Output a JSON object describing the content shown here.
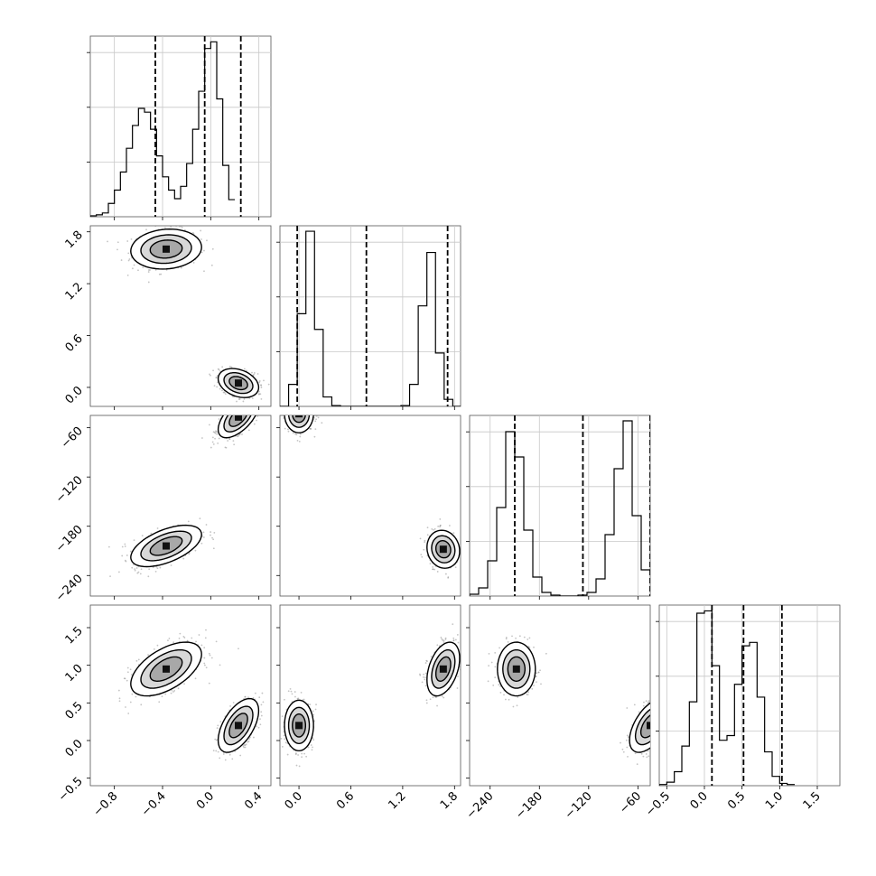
{
  "chart_data": [
    {
      "type": "histogram",
      "param_index": 0,
      "bins": {
        "start": -1.0,
        "width": 0.05,
        "heights": [
          1,
          2,
          4,
          14,
          28,
          47,
          72,
          96,
          114,
          110,
          92,
          64,
          42,
          28,
          19,
          32,
          56,
          92,
          132,
          177,
          184,
          124,
          54,
          18
        ]
      },
      "quantile_lines": [
        -0.46,
        -0.05,
        0.25
      ],
      "grid": true,
      "ylim": [
        0,
        190
      ]
    },
    {
      "type": "histogram",
      "param_index": 1,
      "bins": {
        "start": -0.22,
        "width": 0.1,
        "heights": [
          0,
          28,
          118,
          223,
          98,
          12,
          1,
          0,
          0,
          0,
          0,
          0,
          0,
          0,
          1,
          28,
          128,
          196,
          68,
          9,
          0
        ]
      },
      "quantile_lines": [
        -0.02,
        0.78,
        1.72
      ],
      "grid": true,
      "ylim": [
        0,
        230
      ]
    },
    {
      "type": "histogram",
      "param_index": 2,
      "bins": {
        "start": -265,
        "width": 11,
        "heights": [
          2,
          9,
          39,
          98,
          182,
          154,
          73,
          21,
          4,
          1,
          0,
          0,
          1,
          4,
          19,
          68,
          141,
          194,
          89,
          29
        ]
      },
      "quantile_lines": [
        -210,
        -127,
        -45
      ],
      "grid": true,
      "ylim": [
        0,
        200
      ]
    },
    {
      "type": "histogram",
      "param_index": 3,
      "bins": {
        "start": -0.6,
        "width": 0.1,
        "heights": [
          1,
          3,
          12,
          34,
          72,
          148,
          150,
          103,
          39,
          43,
          87,
          120,
          123,
          76,
          29,
          8,
          2,
          1
        ]
      },
      "quantile_lines": [
        0.1,
        0.52,
        1.03
      ],
      "grid": true,
      "ylim": [
        0,
        155
      ]
    },
    {
      "type": "scatter",
      "x_param": 0,
      "y_param": 1,
      "clusters": [
        {
          "mean_x": -0.37,
          "mean_y": 1.6,
          "sd_x": 0.14,
          "sd_y": 0.11,
          "rho": 0.1
        },
        {
          "mean_x": 0.23,
          "mean_y": 0.05,
          "sd_x": 0.08,
          "sd_y": 0.08,
          "rho": -0.3
        }
      ],
      "contour_levels": [
        1.0,
        1.5,
        2.0
      ]
    },
    {
      "type": "scatter",
      "x_param": 0,
      "y_param": 2,
      "clusters": [
        {
          "mean_x": 0.23,
          "mean_y": -47,
          "sd_x": 0.08,
          "sd_y": 12,
          "rho": 0.6
        },
        {
          "mean_x": -0.37,
          "mean_y": -204,
          "sd_x": 0.14,
          "sd_y": 12,
          "rho": 0.55
        }
      ],
      "contour_levels": [
        1.0,
        1.5,
        2.0
      ]
    },
    {
      "type": "scatter",
      "x_param": 1,
      "y_param": 2,
      "clusters": [
        {
          "mean_x": 0.0,
          "mean_y": -43,
          "sd_x": 0.08,
          "sd_y": 11,
          "rho": 0.0
        },
        {
          "mean_x": 1.67,
          "mean_y": -208,
          "sd_x": 0.09,
          "sd_y": 11,
          "rho": -0.1
        }
      ],
      "contour_levels": [
        1.0,
        1.5,
        2.0
      ]
    },
    {
      "type": "scatter",
      "x_param": 0,
      "y_param": 3,
      "clusters": [
        {
          "mean_x": -0.37,
          "mean_y": 0.95,
          "sd_x": 0.14,
          "sd_y": 0.17,
          "rho": 0.55
        },
        {
          "mean_x": 0.23,
          "mean_y": 0.2,
          "sd_x": 0.08,
          "sd_y": 0.17,
          "rho": 0.55
        }
      ],
      "contour_levels": [
        1.0,
        1.5,
        2.0
      ]
    },
    {
      "type": "scatter",
      "x_param": 1,
      "y_param": 3,
      "clusters": [
        {
          "mean_x": 0.0,
          "mean_y": 0.2,
          "sd_x": 0.08,
          "sd_y": 0.16,
          "rho": 0.0
        },
        {
          "mean_x": 1.67,
          "mean_y": 0.95,
          "sd_x": 0.09,
          "sd_y": 0.17,
          "rho": 0.4
        }
      ],
      "contour_levels": [
        1.0,
        1.5,
        2.0
      ]
    },
    {
      "type": "scatter",
      "x_param": 2,
      "y_param": 3,
      "clusters": [
        {
          "mean_x": -208,
          "mean_y": 0.95,
          "sd_x": 11,
          "sd_y": 0.17,
          "rho": 0.0
        },
        {
          "mean_x": -45,
          "mean_y": 0.2,
          "sd_x": 12,
          "sd_y": 0.17,
          "rho": 0.55
        }
      ],
      "contour_levels": [
        1.0,
        1.5,
        2.0
      ]
    }
  ],
  "params": [
    {
      "range": [
        -1.0,
        0.5
      ],
      "ticks": [
        -0.8,
        -0.4,
        0.0,
        0.4
      ],
      "tick_labels": [
        "−0.8",
        "−0.4",
        "0.0",
        "0.4"
      ]
    },
    {
      "range": [
        -0.22,
        1.87
      ],
      "ticks": [
        0.0,
        0.6,
        1.2,
        1.8
      ],
      "tick_labels": [
        "0.0",
        "0.6",
        "1.2",
        "1.8"
      ]
    },
    {
      "range": [
        -265,
        -45
      ],
      "ticks": [
        -240,
        -180,
        -120,
        -60
      ],
      "tick_labels": [
        "−240",
        "−180",
        "−120",
        "−60"
      ]
    },
    {
      "range": [
        -0.6,
        1.8
      ],
      "ticks": [
        -0.5,
        0.0,
        0.5,
        1.0,
        1.5
      ],
      "tick_labels": [
        "−0.5",
        "0.0",
        "0.5",
        "1.0",
        "1.5"
      ]
    }
  ],
  "colors": {
    "points": "#8a8a8a",
    "contour": "#000000",
    "grid": "#c8c8c8",
    "axis": "#555555"
  }
}
